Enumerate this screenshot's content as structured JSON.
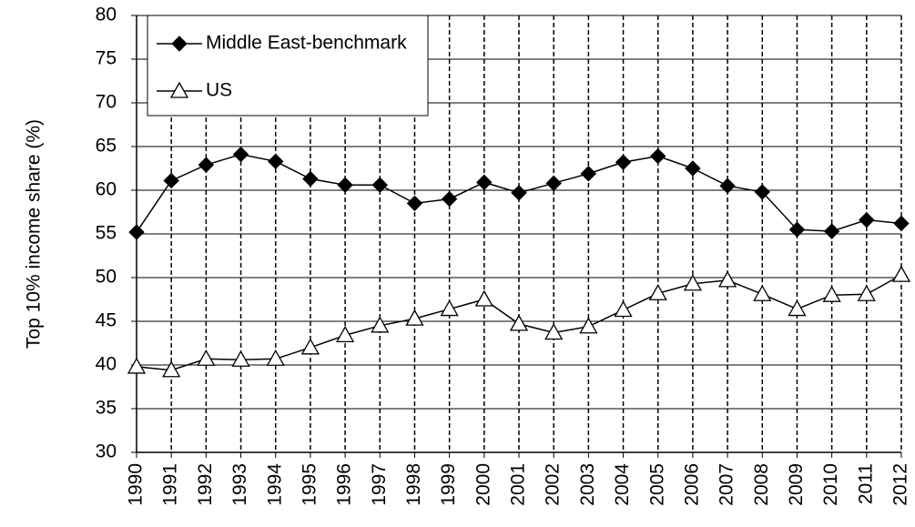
{
  "chart_data": {
    "type": "line",
    "y_label": "Top 10% income share (%)",
    "categories": [
      "1990",
      "1991",
      "1992",
      "1993",
      "1994",
      "1995",
      "1996",
      "1997",
      "1998",
      "1999",
      "2000",
      "2001",
      "2002",
      "2003",
      "2004",
      "2005",
      "2006",
      "2007",
      "2008",
      "2009",
      "2010",
      "2011",
      "2012"
    ],
    "series": [
      {
        "name": "Middle East-benchmark",
        "color": "#000000",
        "marker": "diamond",
        "values": [
          55.2,
          61.1,
          62.9,
          64.1,
          63.3,
          61.3,
          60.6,
          60.6,
          58.5,
          59.0,
          60.9,
          59.7,
          60.8,
          61.9,
          63.2,
          63.9,
          62.5,
          60.5,
          59.8,
          55.5,
          55.3,
          56.6,
          56.2
        ]
      },
      {
        "name": "US",
        "color": "#000000",
        "marker": "triangle",
        "values": [
          39.8,
          39.4,
          40.7,
          40.6,
          40.7,
          42.0,
          43.4,
          44.5,
          45.3,
          46.4,
          47.5,
          44.7,
          43.7,
          44.4,
          46.3,
          48.2,
          49.3,
          49.7,
          48.1,
          46.4,
          48.0,
          48.1,
          50.3
        ]
      }
    ],
    "ylim": [
      30,
      80
    ],
    "yticks": [
      30,
      35,
      40,
      45,
      50,
      55,
      60,
      65,
      70,
      75,
      80
    ],
    "grid": true,
    "legend": "upper left"
  }
}
